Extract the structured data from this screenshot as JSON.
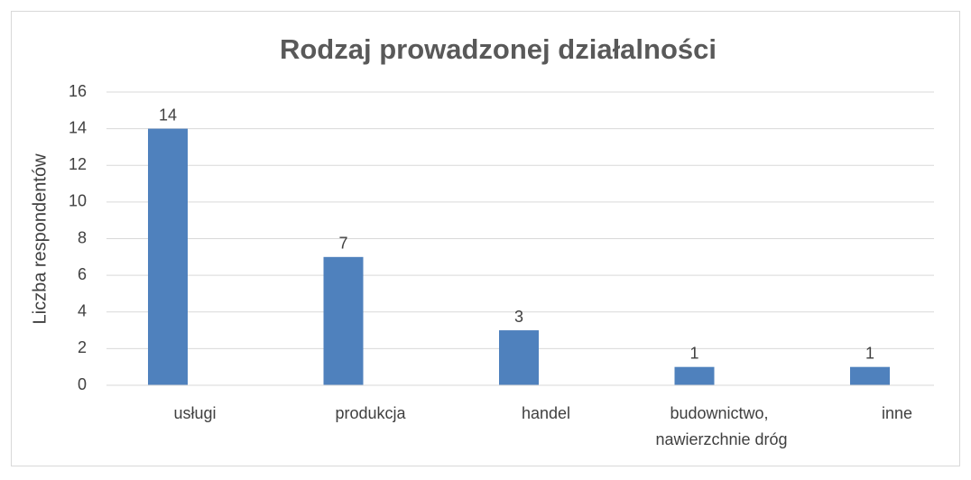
{
  "chart_data": {
    "type": "bar",
    "title": "Rodzaj prowadzonej działalności",
    "y_label": "Liczba respondentów",
    "categories": [
      "usługi",
      "produkcja",
      "handel",
      "budownictwo, nawierzchnie dróg",
      "inne"
    ],
    "values": [
      14,
      7,
      3,
      1,
      1
    ],
    "color": "#4f81bd",
    "ylim": [
      0,
      16
    ],
    "yticks": [
      0,
      2,
      4,
      6,
      8,
      10,
      12,
      14,
      16
    ],
    "grid": true
  }
}
